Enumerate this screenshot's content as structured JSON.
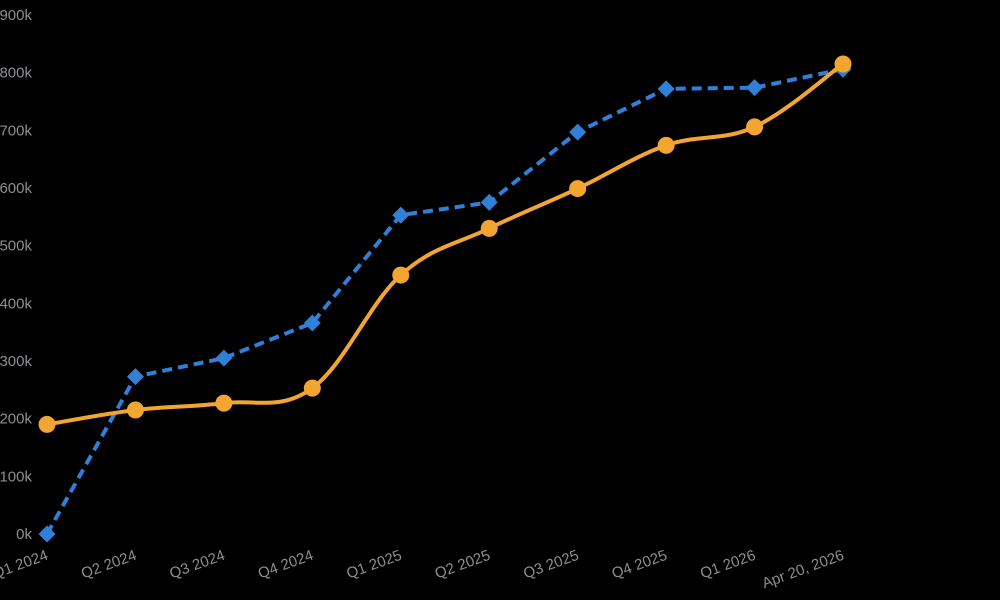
{
  "chart_data": {
    "type": "line",
    "title": "",
    "xlabel": "",
    "ylabel": "",
    "categories": [
      "Q1 2024",
      "Q2 2024",
      "Q3 2024",
      "Q4 2024",
      "Q1 2025",
      "Q2 2025",
      "Q3 2025",
      "Q4 2025",
      "Q1 2026",
      "Apr 20, 2026"
    ],
    "y_ticks": [
      "0k",
      "100k",
      "200k",
      "300k",
      "400k",
      "500k",
      "600k",
      "700k",
      "800k",
      "900k"
    ],
    "ylim": [
      0,
      900000
    ],
    "grid": false,
    "legend": "none",
    "series": [
      {
        "color": "#2f80d8",
        "line_style": "dashed",
        "marker": "diamond",
        "values": [
          0,
          273000,
          305000,
          366000,
          553000,
          575000,
          697000,
          772000,
          774000,
          806000
        ]
      },
      {
        "color": "#f3a531",
        "line_style": "solid",
        "marker": "circle",
        "values": [
          190000,
          215000,
          227000,
          253000,
          449000,
          530000,
          599000,
          674000,
          706000,
          815000
        ]
      }
    ]
  }
}
